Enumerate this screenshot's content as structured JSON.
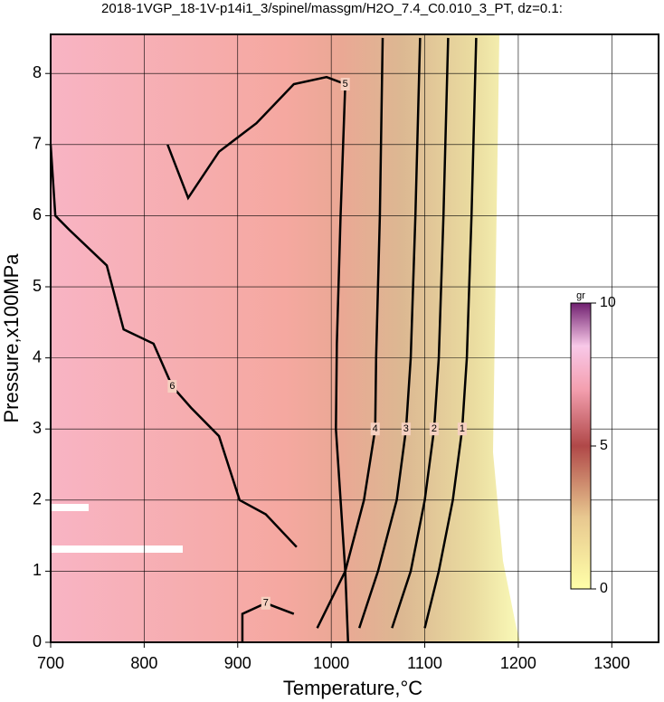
{
  "chart_data": {
    "type": "contour",
    "title": "2018-1VGP_18-1V-p14i1_3/spinel/massgm/H2O_7.4_C0.010_3_PT, dz=0.1:",
    "x_label": "Temperature,°C",
    "y_label": "Pressure,x100MPa",
    "xlim": [
      700,
      1350
    ],
    "ylim": [
      0,
      8.55
    ],
    "xticks": [
      700,
      800,
      900,
      1000,
      1100,
      1200,
      1300
    ],
    "yticks": [
      0,
      1,
      2,
      3,
      4,
      5,
      6,
      7,
      8
    ],
    "grid": true,
    "contours": [
      {
        "level": 1,
        "x": [
          1155,
          1150,
          1145,
          1140,
          1130,
          1115,
          1100
        ],
        "y": [
          8.5,
          6,
          4,
          3,
          2,
          1,
          0.2
        ]
      },
      {
        "level": 2,
        "x": [
          1125,
          1120,
          1115,
          1110,
          1100,
          1085,
          1065
        ],
        "y": [
          8.5,
          6,
          4,
          3,
          2,
          1,
          0.2
        ]
      },
      {
        "level": 3,
        "x": [
          1095,
          1090,
          1085,
          1080,
          1070,
          1050,
          1030
        ],
        "y": [
          8.5,
          6,
          4,
          3,
          2,
          1,
          0.2
        ]
      },
      {
        "level": 4,
        "x": [
          1055,
          1052,
          1048,
          1047,
          1035,
          1015,
          985
        ],
        "y": [
          8.5,
          6,
          4,
          3,
          2,
          1,
          0.2
        ]
      },
      {
        "level": 5,
        "x": [
          825,
          847,
          880,
          920,
          960,
          995,
          1015,
          1010,
          1006,
          1005,
          1010,
          1015,
          1018
        ],
        "y": [
          7.0,
          6.25,
          6.9,
          7.3,
          7.85,
          7.95,
          7.85,
          6,
          4.2,
          3,
          2,
          1,
          0
        ]
      },
      {
        "level": 6,
        "x": [
          700,
          705,
          720,
          760,
          778,
          810,
          830,
          850,
          880,
          902,
          930,
          963
        ],
        "y": [
          7.0,
          6.0,
          5.8,
          5.3,
          4.4,
          4.2,
          3.6,
          3.3,
          2.9,
          2.0,
          1.8,
          1.34
        ]
      },
      {
        "level": 7,
        "x": [
          905,
          905,
          930,
          960
        ],
        "y": [
          0.0,
          0.4,
          0.55,
          0.4
        ]
      }
    ],
    "colorbar": {
      "label": "gr",
      "lim": [
        0,
        10
      ],
      "ticks": [
        0,
        5,
        10
      ]
    }
  }
}
